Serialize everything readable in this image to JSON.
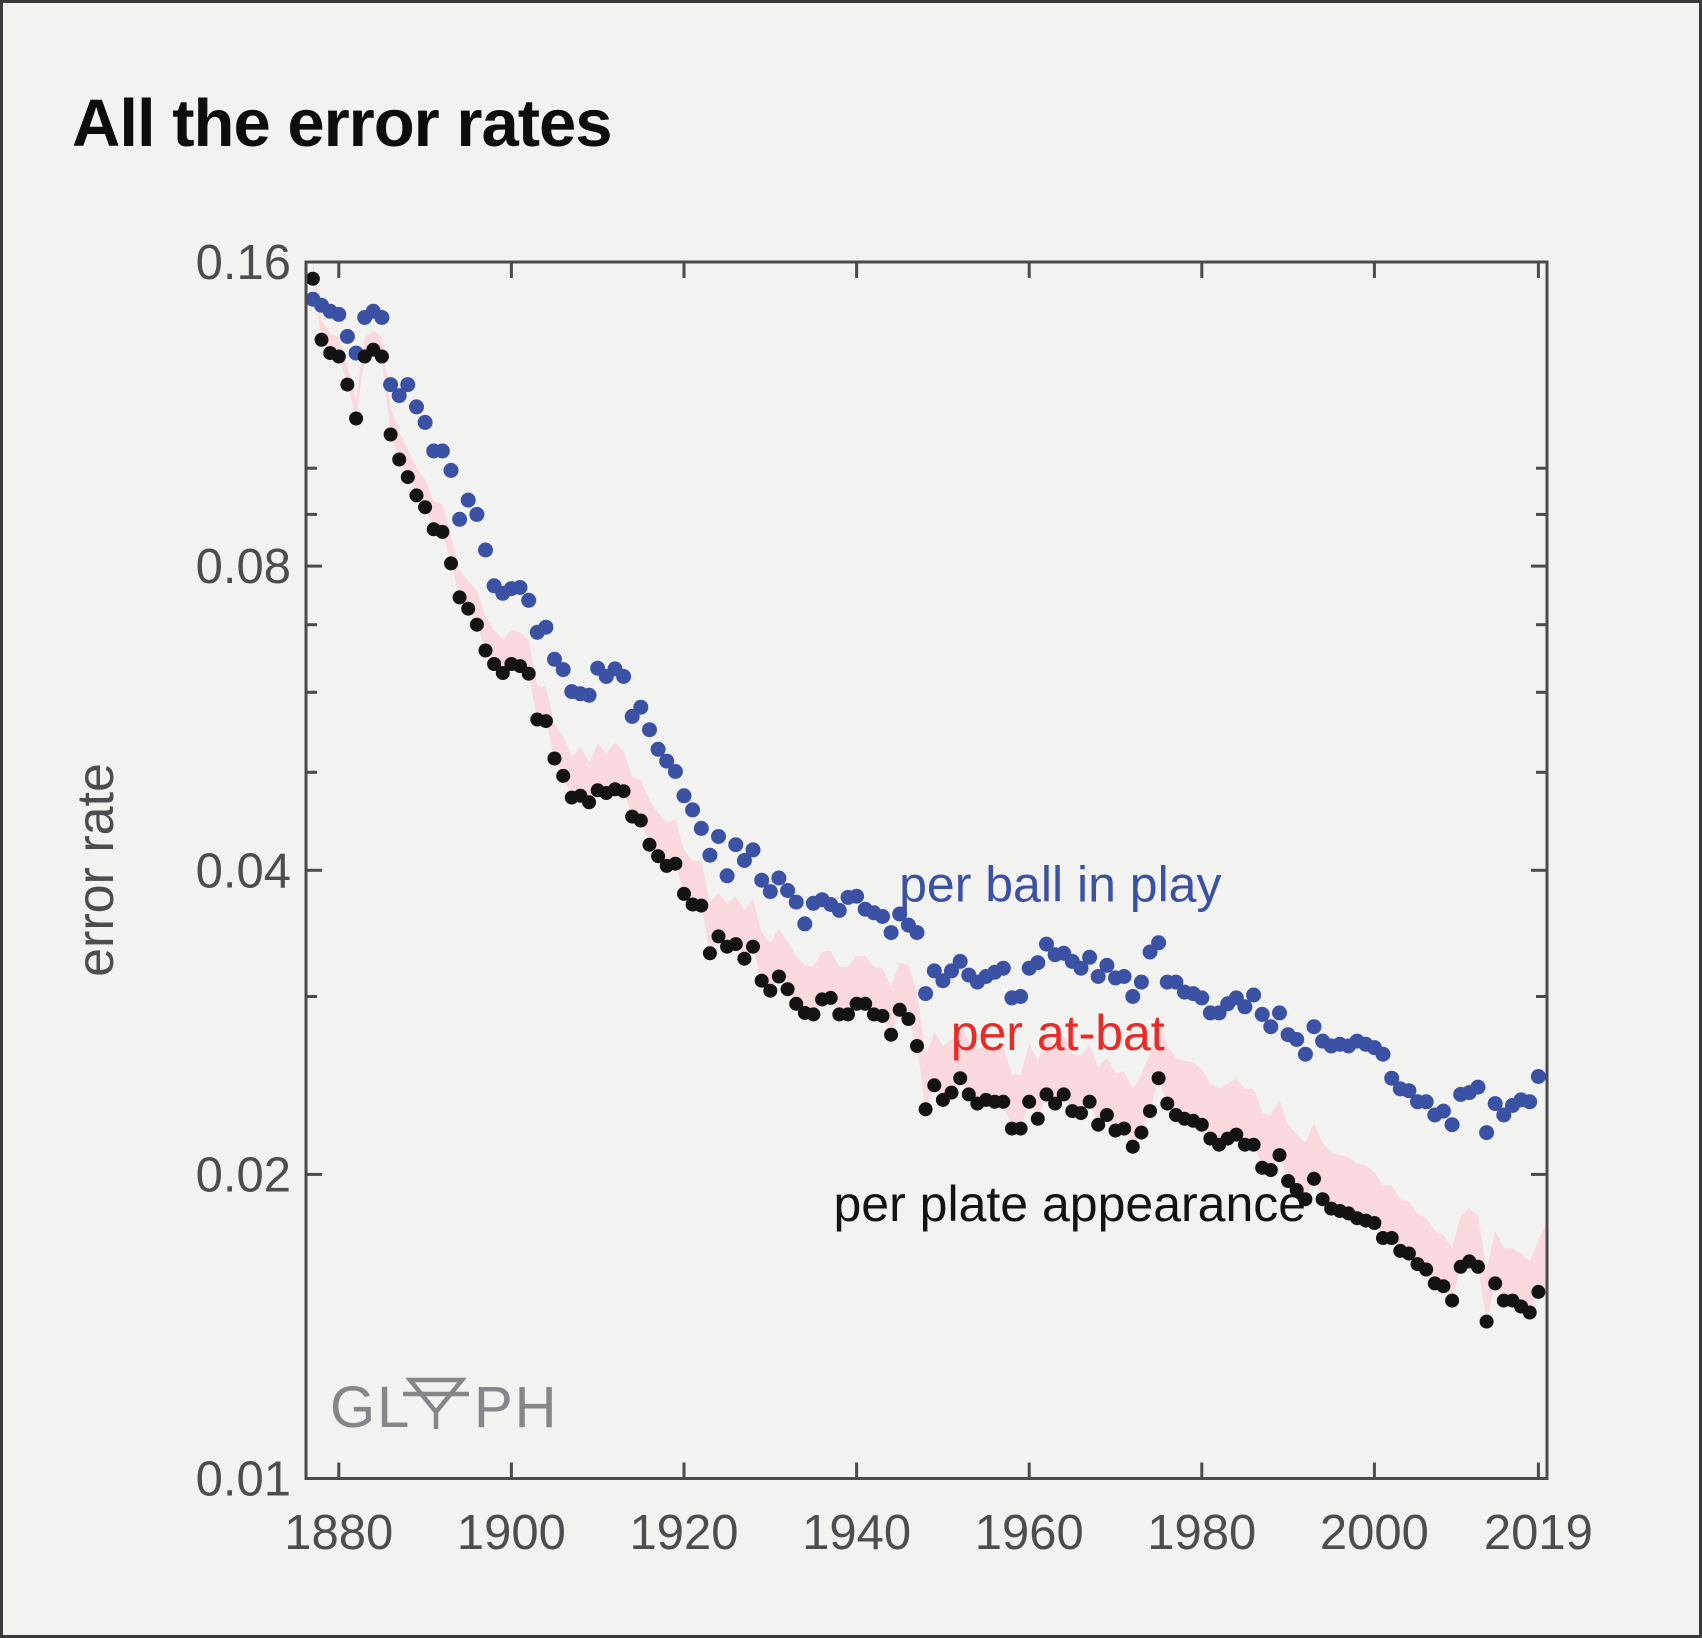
{
  "title": "All the error rates",
  "watermark": {
    "full": "GLYPH",
    "left": "GL",
    "right": "PH",
    "color": "#85868a"
  },
  "style": {
    "background": "#f2f2f1",
    "frame_color": "#3a3a3c",
    "axis_color": "#4b4b4d",
    "tick_label_color": "#4d4d4f",
    "title_color": "#0d0d0d",
    "accent_blue": "#3b51a3",
    "accent_red": "#e92b27",
    "band_pink": "#f9d9dd",
    "dot_black": "#131313"
  },
  "chart_data": {
    "type": "scatter",
    "title": "All the error rates",
    "xlabel": "",
    "ylabel": "error rate",
    "y_scale": "log",
    "grid": false,
    "legend_position": "inline-annotations",
    "xlim": [
      1876.2,
      2020.0
    ],
    "ylim": [
      0.01,
      0.16
    ],
    "x_ticks": [
      1880,
      1900,
      1920,
      1940,
      1960,
      1980,
      2000,
      2019
    ],
    "x_tick_labels": [
      "1880",
      "1900",
      "1920",
      "1940",
      "1960",
      "1980",
      "2000",
      "2019"
    ],
    "y_ticks": [
      0.16,
      0.08,
      0.04,
      0.02,
      0.01
    ],
    "y_tick_labels": [
      "0.16",
      "0.08",
      "0.04",
      "0.02",
      "0.01"
    ],
    "y_minor_ticks": [
      0.1,
      0.09,
      0.07,
      0.06,
      0.05,
      0.03
    ],
    "x_start": 1877,
    "x_step": 1,
    "series": [
      {
        "name": "per ball in play",
        "style": "points",
        "color": "#3b51a3",
        "values": [
          0.147,
          0.145,
          0.143,
          0.142,
          0.135,
          0.13,
          0.141,
          0.143,
          0.141,
          0.121,
          0.118,
          0.121,
          0.115,
          0.111,
          0.104,
          0.104,
          0.0995,
          0.089,
          0.093,
          0.09,
          0.083,
          0.0765,
          0.0752,
          0.076,
          0.0762,
          0.074,
          0.0688,
          0.0696,
          0.0647,
          0.0632,
          0.0601,
          0.0598,
          0.0596,
          0.0634,
          0.0622,
          0.0633,
          0.0622,
          0.0568,
          0.058,
          0.0551,
          0.0527,
          0.0513,
          0.0501,
          0.0474,
          0.0459,
          0.044,
          0.0414,
          0.0432,
          0.0395,
          0.0424,
          0.0409,
          0.0419,
          0.0391,
          0.0381,
          0.0393,
          0.0382,
          0.0372,
          0.0354,
          0.0371,
          0.0374,
          0.037,
          0.0365,
          0.0376,
          0.0377,
          0.0366,
          0.0363,
          0.036,
          0.0347,
          0.0362,
          0.0353,
          0.0347,
          0.0302,
          0.0318,
          0.0311,
          0.0318,
          0.0325,
          0.0315,
          0.031,
          0.0314,
          0.0317,
          0.032,
          0.0299,
          0.03,
          0.032,
          0.0324,
          0.0338,
          0.033,
          0.0331,
          0.0325,
          0.032,
          0.0328,
          0.0314,
          0.0322,
          0.0313,
          0.0314,
          0.03,
          0.031,
          0.0332,
          0.0339,
          0.031,
          0.031,
          0.0303,
          0.0302,
          0.0299,
          0.0289,
          0.0289,
          0.0295,
          0.0299,
          0.0293,
          0.0301,
          0.0288,
          0.028,
          0.0289,
          0.0275,
          0.0272,
          0.0263,
          0.028,
          0.0271,
          0.0268,
          0.0269,
          0.0268,
          0.0271,
          0.0269,
          0.0267,
          0.0263,
          0.0249,
          0.0243,
          0.0242,
          0.0236,
          0.0236,
          0.0229,
          0.0231,
          0.0224,
          0.024,
          0.0241,
          0.0244,
          0.022,
          0.0235,
          0.0229,
          0.0234,
          0.0237,
          0.0236,
          0.025
        ]
      },
      {
        "name": "per at-bat",
        "style": "band-top",
        "label_color": "#e92b27",
        "fill_color": "#f9d9dd",
        "values": [
          0.1609,
          0.14,
          0.1359,
          0.1348,
          0.1264,
          0.117,
          0.1348,
          0.1369,
          0.1348,
          0.115,
          0.1086,
          0.1044,
          0.1001,
          0.0974,
          0.0927,
          0.0921,
          0.0857,
          0.0793,
          0.0773,
          0.0756,
          0.0713,
          0.0691,
          0.0677,
          0.0691,
          0.0688,
          0.0676,
          0.0609,
          0.0607,
          0.0557,
          0.0543,
          0.0517,
          0.053,
          0.0511,
          0.0535,
          0.0522,
          0.0535,
          0.0525,
          0.0495,
          0.0491,
          0.0469,
          0.0456,
          0.0446,
          0.0449,
          0.0419,
          0.0409,
          0.0408,
          0.0372,
          0.038,
          0.0371,
          0.0377,
          0.0365,
          0.0375,
          0.0347,
          0.0339,
          0.035,
          0.034,
          0.0329,
          0.0322,
          0.0321,
          0.0332,
          0.0333,
          0.0321,
          0.0321,
          0.0329,
          0.0329,
          0.0321,
          0.032,
          0.0307,
          0.0324,
          0.0322,
          0.0303,
          0.0262,
          0.0277,
          0.0268,
          0.0272,
          0.0281,
          0.0271,
          0.0266,
          0.0268,
          0.0267,
          0.0267,
          0.0251,
          0.0251,
          0.0269,
          0.0259,
          0.0274,
          0.0268,
          0.0274,
          0.0263,
          0.0262,
          0.0269,
          0.0255,
          0.0261,
          0.0252,
          0.0253,
          0.0243,
          0.0251,
          0.0263,
          0.0284,
          0.0268,
          0.0261,
          0.0259,
          0.0258,
          0.0254,
          0.0246,
          0.0243,
          0.0246,
          0.0249,
          0.0243,
          0.0243,
          0.023,
          0.0229,
          0.0237,
          0.0224,
          0.0219,
          0.0215,
          0.0225,
          0.0215,
          0.021,
          0.0209,
          0.0208,
          0.0205,
          0.0204,
          0.0201,
          0.0195,
          0.0195,
          0.0189,
          0.0188,
          0.0183,
          0.0181,
          0.0176,
          0.0174,
          0.0169,
          0.0182,
          0.0185,
          0.0182,
          0.0161,
          0.0176,
          0.0169,
          0.0169,
          0.0167,
          0.0164,
          0.0172
        ]
      },
      {
        "name": "per plate appearance",
        "style": "points",
        "color": "#131313",
        "values": [
          0.154,
          0.134,
          0.13,
          0.129,
          0.121,
          0.112,
          0.129,
          0.131,
          0.129,
          0.108,
          0.102,
          0.098,
          0.094,
          0.0915,
          0.087,
          0.0865,
          0.0805,
          0.0745,
          0.0726,
          0.07,
          0.066,
          0.064,
          0.0627,
          0.064,
          0.0637,
          0.0626,
          0.0564,
          0.0562,
          0.0516,
          0.0496,
          0.0472,
          0.0474,
          0.0467,
          0.048,
          0.0477,
          0.0481,
          0.0479,
          0.0452,
          0.0448,
          0.0424,
          0.0413,
          0.0404,
          0.0406,
          0.0379,
          0.037,
          0.0369,
          0.0331,
          0.0344,
          0.0336,
          0.0338,
          0.0327,
          0.0336,
          0.0311,
          0.0304,
          0.0314,
          0.0305,
          0.0295,
          0.0289,
          0.0288,
          0.0298,
          0.0299,
          0.0288,
          0.0288,
          0.0295,
          0.0295,
          0.0288,
          0.0287,
          0.0275,
          0.0291,
          0.0285,
          0.0268,
          0.0232,
          0.0245,
          0.0237,
          0.0241,
          0.0249,
          0.024,
          0.0235,
          0.0237,
          0.0236,
          0.0236,
          0.0222,
          0.0222,
          0.0236,
          0.0227,
          0.024,
          0.0235,
          0.024,
          0.0231,
          0.023,
          0.0236,
          0.0224,
          0.0229,
          0.0221,
          0.0222,
          0.0213,
          0.022,
          0.0231,
          0.0249,
          0.0235,
          0.0229,
          0.0227,
          0.0226,
          0.0224,
          0.0217,
          0.0214,
          0.0217,
          0.0219,
          0.0214,
          0.0214,
          0.0203,
          0.0202,
          0.0209,
          0.0197,
          0.0193,
          0.0189,
          0.0198,
          0.0189,
          0.0185,
          0.0184,
          0.0183,
          0.0181,
          0.018,
          0.0179,
          0.0173,
          0.0173,
          0.0168,
          0.0167,
          0.0163,
          0.0161,
          0.0156,
          0.0155,
          0.015,
          0.0162,
          0.0164,
          0.0162,
          0.0143,
          0.0156,
          0.015,
          0.015,
          0.0148,
          0.0146,
          0.0153
        ]
      }
    ],
    "band_extension": {
      "x": 2020.0,
      "top": 0.018,
      "bottom": 0.0154
    },
    "annotations": [
      {
        "text": "per ball in play",
        "x": 1963.6,
        "y": 0.0387,
        "color": "#3b51a3"
      },
      {
        "text": "per at-bat",
        "x": 1963.3,
        "y": 0.0276,
        "color": "#e92b27"
      },
      {
        "text": "per plate appearance",
        "x": 1964.7,
        "y": 0.0187,
        "color": "#131313"
      }
    ]
  }
}
